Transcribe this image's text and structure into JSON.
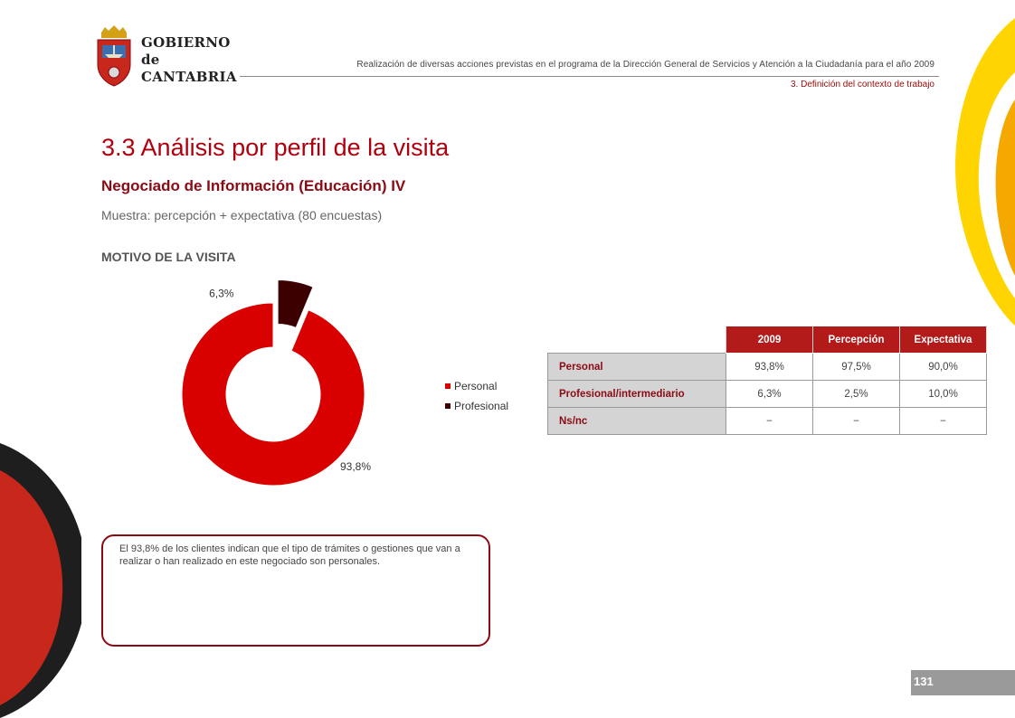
{
  "logo": {
    "text": "GOBIERNO\nde\nCANTABRIA"
  },
  "header": {
    "title": "Realización de diversas acciones previstas en el programa de la Dirección General de Servicios y Atención a la Ciudadanía para el año 2009",
    "section": "3. Definición del contexto de trabajo"
  },
  "page": {
    "title": "3.3 Análisis por perfil de la visita",
    "subtitle": "Negociado de Información (Educación) IV",
    "sample": "Muestra: percepción + expectativa (80 encuestas)",
    "section_heading": "MOTIVO DE LA VISITA",
    "page_number": "131"
  },
  "chart_data": {
    "type": "pie",
    "variant": "doughnut",
    "categories": [
      "Personal",
      "Profesional"
    ],
    "values": [
      93.8,
      6.3
    ],
    "data_labels": [
      "93,8%",
      "6,3%"
    ],
    "colors": [
      "#d90000",
      "#3d0000"
    ],
    "exploded": [
      "Profesional"
    ],
    "legend_position": "right"
  },
  "table": {
    "headers": [
      "2009",
      "Percepción",
      "Expectativa"
    ],
    "rows": [
      {
        "label": "Personal",
        "values": [
          "93,8%",
          "97,5%",
          "90,0%"
        ]
      },
      {
        "label": "Profesional/intermediario",
        "values": [
          "6,3%",
          "2,5%",
          "10,0%"
        ]
      },
      {
        "label": "Ns/nc",
        "values": [
          "−",
          "−",
          "−"
        ]
      }
    ]
  },
  "note": {
    "text": "El 93,8% de los clientes indican que el tipo de trámites o gestiones que van a realizar o han realizado en este negociado son personales."
  },
  "colors": {
    "accent": "#b0000d",
    "dark_red": "#8b0a14",
    "header_gray": "#9a9a9a"
  }
}
